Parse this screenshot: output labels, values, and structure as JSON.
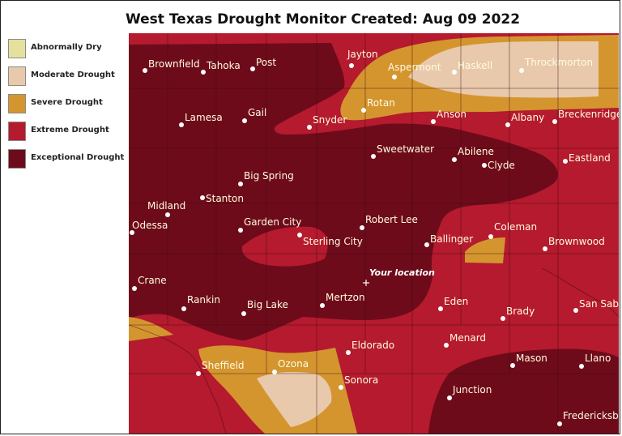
{
  "title": "West Texas Drought Monitor Created: Aug 09 2022",
  "legend": [
    {
      "label": "Abnormally Dry",
      "color": "#e6e09e"
    },
    {
      "label": "Moderate Drought",
      "color": "#e9c9ab"
    },
    {
      "label": "Severe Drought",
      "color": "#d4952f"
    },
    {
      "label": "Extreme Drought",
      "color": "#b51a2e"
    },
    {
      "label": "Exceptional Drought",
      "color": "#6e0b1a"
    }
  ],
  "map": {
    "your_location_label": "Your location",
    "cities": [
      {
        "name": "Brownfield",
        "key": "brownfield"
      },
      {
        "name": "Tahoka",
        "key": "tahoka"
      },
      {
        "name": "Post",
        "key": "post"
      },
      {
        "name": "Jayton",
        "key": "jayton"
      },
      {
        "name": "Aspermont",
        "key": "aspermont"
      },
      {
        "name": "Haskell",
        "key": "haskell"
      },
      {
        "name": "Throckmorton",
        "key": "throckmorton"
      },
      {
        "name": "Rotan",
        "key": "rotan"
      },
      {
        "name": "Lamesa",
        "key": "lamesa"
      },
      {
        "name": "Gail",
        "key": "gail"
      },
      {
        "name": "Snyder",
        "key": "snyder"
      },
      {
        "name": "Anson",
        "key": "anson"
      },
      {
        "name": "Albany",
        "key": "albany"
      },
      {
        "name": "Breckenridge",
        "key": "breckenridge"
      },
      {
        "name": "Sweetwater",
        "key": "sweetwater"
      },
      {
        "name": "Abilene",
        "key": "abilene"
      },
      {
        "name": "Clyde",
        "key": "clyde"
      },
      {
        "name": "Eastland",
        "key": "eastland"
      },
      {
        "name": "Big Spring",
        "key": "bigspring"
      },
      {
        "name": "Stanton",
        "key": "stanton"
      },
      {
        "name": "Midland",
        "key": "midland"
      },
      {
        "name": "Odessa",
        "key": "odessa"
      },
      {
        "name": "Garden City",
        "key": "gardencity"
      },
      {
        "name": "Robert Lee",
        "key": "robertlee"
      },
      {
        "name": "Sterling City",
        "key": "sterlingcity"
      },
      {
        "name": "Ballinger",
        "key": "ballinger"
      },
      {
        "name": "Coleman",
        "key": "coleman"
      },
      {
        "name": "Brownwood",
        "key": "brownwood"
      },
      {
        "name": "Crane",
        "key": "crane"
      },
      {
        "name": "Rankin",
        "key": "rankin"
      },
      {
        "name": "Big Lake",
        "key": "biglake"
      },
      {
        "name": "Mertzon",
        "key": "mertzon"
      },
      {
        "name": "Eden",
        "key": "eden"
      },
      {
        "name": "Brady",
        "key": "brady"
      },
      {
        "name": "San Saba",
        "key": "sansaba"
      },
      {
        "name": "Eldorado",
        "key": "eldorado"
      },
      {
        "name": "Menard",
        "key": "menard"
      },
      {
        "name": "Sheffield",
        "key": "sheffield"
      },
      {
        "name": "Ozona",
        "key": "ozona"
      },
      {
        "name": "Mason",
        "key": "mason"
      },
      {
        "name": "Llano",
        "key": "llano"
      },
      {
        "name": "Sonora",
        "key": "sonora"
      },
      {
        "name": "Junction",
        "key": "junction"
      },
      {
        "name": "Fredericksburg",
        "key": "fredericksburg"
      }
    ]
  }
}
